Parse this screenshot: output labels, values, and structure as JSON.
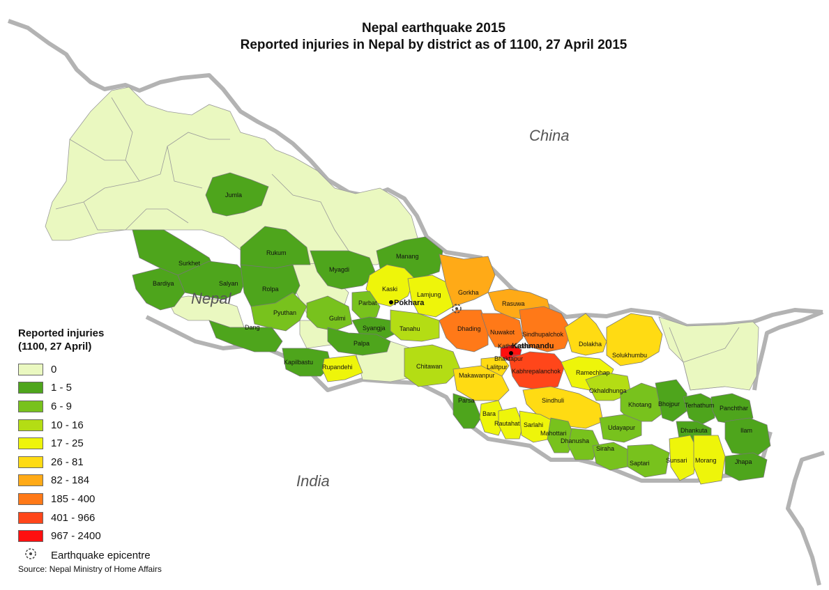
{
  "title": {
    "line1": "Nepal earthquake 2015",
    "line2": "Reported injuries in Nepal by district as of 1100, 27 April 2015"
  },
  "countries": {
    "china": "China",
    "india": "India",
    "nepal": "Nepal"
  },
  "cities": {
    "pokhara": "Pokhara",
    "kathmandu": "Kathmandu"
  },
  "legend": {
    "title_line1": "Reported injuries",
    "title_line2": "(1100, 27 April)",
    "classes": [
      {
        "label": "0",
        "color": "#eaf8c0"
      },
      {
        "label": "1 - 5",
        "color": "#4ea51c"
      },
      {
        "label": "6 - 9",
        "color": "#78c21d"
      },
      {
        "label": "10 - 16",
        "color": "#b4dd14"
      },
      {
        "label": "17 - 25",
        "color": "#eef50a"
      },
      {
        "label": "26 - 81",
        "color": "#ffdb13"
      },
      {
        "label": "82 - 184",
        "color": "#ffaa17"
      },
      {
        "label": "185 - 400",
        "color": "#ff7918"
      },
      {
        "label": "401 - 966",
        "color": "#ff461a"
      },
      {
        "label": "967 - 2400",
        "color": "#ff0f0f"
      }
    ],
    "epicentre_label": "Earthquake epicentre",
    "epicentre_icon": "epicentre-icon"
  },
  "source": "Source: Nepal Ministry of Home Affairs",
  "districts": [
    {
      "name": "Jumla",
      "class": 1
    },
    {
      "name": "Surkhet",
      "class": 1
    },
    {
      "name": "Rukum",
      "class": 1
    },
    {
      "name": "Bardiya",
      "class": 1
    },
    {
      "name": "Salyan",
      "class": 1
    },
    {
      "name": "Rolpa",
      "class": 1
    },
    {
      "name": "Myagdi",
      "class": 1
    },
    {
      "name": "Manang",
      "class": 1
    },
    {
      "name": "Kaski",
      "class": 4
    },
    {
      "name": "Lamjung",
      "class": 4
    },
    {
      "name": "Gorkha",
      "class": 6
    },
    {
      "name": "Pyuthan",
      "class": 2
    },
    {
      "name": "Gulmi",
      "class": 2
    },
    {
      "name": "Parbat",
      "class": 2
    },
    {
      "name": "Syangja",
      "class": 1
    },
    {
      "name": "Tanahu",
      "class": 3
    },
    {
      "name": "Rasuwa",
      "class": 6
    },
    {
      "name": "Dhading",
      "class": 7
    },
    {
      "name": "Nuwakot",
      "class": 7
    },
    {
      "name": "Sindhupalchok",
      "class": 7
    },
    {
      "name": "Kathmandu",
      "class": 9
    },
    {
      "name": "Dolakha",
      "class": 5
    },
    {
      "name": "Solukhumbu",
      "class": 5
    },
    {
      "name": "Dang",
      "class": 1
    },
    {
      "name": "Palpa",
      "class": 1
    },
    {
      "name": "Kapilbastu",
      "class": 1
    },
    {
      "name": "Rupandehi",
      "class": 4
    },
    {
      "name": "Chitawan",
      "class": 3
    },
    {
      "name": "Bhaktapur",
      "class": 9
    },
    {
      "name": "Lalitpur",
      "class": 5
    },
    {
      "name": "Kabhrepalanchok",
      "class": 8
    },
    {
      "name": "Ramechhap",
      "class": 4
    },
    {
      "name": "Makawanpur",
      "class": 5
    },
    {
      "name": "Okhaldhunga",
      "class": 3
    },
    {
      "name": "Sindhuli",
      "class": 5
    },
    {
      "name": "Khotang",
      "class": 2
    },
    {
      "name": "Bhojpur",
      "class": 1
    },
    {
      "name": "Terhathum",
      "class": 1
    },
    {
      "name": "Panchthar",
      "class": 1
    },
    {
      "name": "Parsa",
      "class": 1
    },
    {
      "name": "Bara",
      "class": 4
    },
    {
      "name": "Rautahat",
      "class": 4
    },
    {
      "name": "Sarlahi",
      "class": 4
    },
    {
      "name": "Mahottari",
      "class": 2
    },
    {
      "name": "Dhanusha",
      "class": 2
    },
    {
      "name": "Udayapur",
      "class": 2
    },
    {
      "name": "Dhankuta",
      "class": 1
    },
    {
      "name": "Ilam",
      "class": 1
    },
    {
      "name": "Siraha",
      "class": 2
    },
    {
      "name": "Saptari",
      "class": 2
    },
    {
      "name": "Sunsari",
      "class": 4
    },
    {
      "name": "Morang",
      "class": 4
    },
    {
      "name": "Jhapa",
      "class": 1
    }
  ]
}
